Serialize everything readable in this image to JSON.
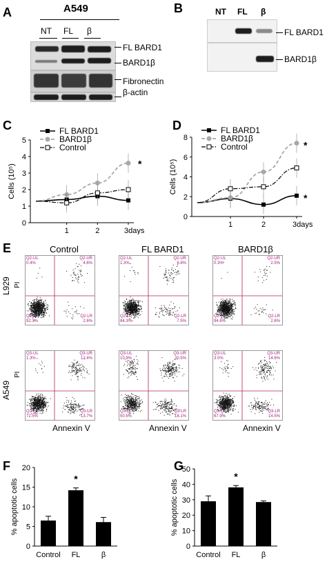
{
  "panelA": {
    "letter": "A",
    "cell_line": "A549",
    "lanes": [
      "NT",
      "FL",
      "β"
    ],
    "band_labels": [
      "FL BARD1",
      "BARD1β",
      "Fibronectin",
      "β-actin"
    ]
  },
  "panelB": {
    "letter": "B",
    "lanes": [
      "NT",
      "FL",
      "β"
    ],
    "band_labels": [
      "FL BARD1",
      "BARD1β"
    ]
  },
  "panelC": {
    "letter": "C"
  },
  "panelD": {
    "letter": "D"
  },
  "panelE": {
    "letter": "E",
    "columns": [
      "Control",
      "FL BARD1",
      "BARD1β"
    ],
    "rows": [
      "L929",
      "A549"
    ],
    "x_axis_label": "Annexin V",
    "y_axis_label": "PI",
    "plots": [
      {
        "UL": "Q2-UL",
        "UR": "Q2-UR",
        "LL": "Q2-LL",
        "LR": "Q2-LR",
        "ULv": "0.4%",
        "URv": "4.6%",
        "LLv": "92.3%",
        "LRv": "2.6%"
      },
      {
        "UL": "Q2-UL",
        "UR": "Q2-UR",
        "LL": "Q2-LL",
        "LR": "Q2-LR",
        "ULv": "1.3%",
        "URv": "6.8%",
        "LLv": "84.3%",
        "LRv": "7.5%"
      },
      {
        "UL": "Q2-UL",
        "UR": "Q2-UR",
        "LL": "Q2-LL",
        "LR": "Q2-LR",
        "ULv": "0.3%",
        "URv": "2.5%",
        "LLv": "94.6%",
        "LRv": "2.6%"
      },
      {
        "UL": "Q3-UL",
        "UR": "Q3-UR",
        "LL": "Q3-LL",
        "LR": "Q3-LR",
        "ULv": "1.3%",
        "URv": "12.4%",
        "LLv": "72.5%",
        "LRv": "13.7%"
      },
      {
        "UL": "Q3-UL",
        "UR": "Q3-UR",
        "LL": "Q3-LL",
        "LR": "Q3-LR",
        "ULv": "10.9%",
        "URv": "20.5%",
        "LLv": "50.5%",
        "LRv": "18.1%"
      },
      {
        "UL": "Q3-UL",
        "UR": "Q3-UR",
        "LL": "Q3-LL",
        "LR": "Q3-LR",
        "ULv": "3.0%",
        "URv": "14.6%",
        "LLv": "67.9%",
        "LRv": "14.5%"
      }
    ]
  },
  "panelF": {
    "letter": "F"
  },
  "panelG": {
    "letter": "G"
  },
  "chart_data": [
    {
      "id": "C",
      "type": "line",
      "x": [
        0,
        1,
        2,
        3
      ],
      "xticks": [
        "1",
        "2",
        "3days"
      ],
      "ylabel": "Cells (10⁵)",
      "ylim": [
        0,
        5
      ],
      "yticks": [
        "0",
        "1",
        "2",
        "3",
        "4",
        "5"
      ],
      "series": [
        {
          "name": "FL BARD1",
          "values": [
            1.3,
            1.4,
            1.6,
            1.35
          ],
          "color": "#000000"
        },
        {
          "name": "BARD1β",
          "values": [
            1.3,
            1.7,
            2.4,
            3.6
          ],
          "color": "#a8a8a8"
        },
        {
          "name": "Control",
          "values": [
            1.3,
            1.2,
            1.8,
            2.0
          ],
          "color": "#000000"
        }
      ],
      "annotations": [
        "*"
      ]
    },
    {
      "id": "D",
      "type": "line",
      "x": [
        0,
        1,
        2,
        3
      ],
      "xticks": [
        "1",
        "2",
        "3days"
      ],
      "ylabel": "Cells (10⁵)",
      "ylim": [
        0,
        8
      ],
      "yticks": [
        "0",
        "2",
        "4",
        "6",
        "8"
      ],
      "series": [
        {
          "name": "FL BARD1",
          "values": [
            1.4,
            1.8,
            1.2,
            2.1
          ],
          "color": "#000000"
        },
        {
          "name": "BARD1β",
          "values": [
            1.4,
            1.9,
            4.5,
            7.4
          ],
          "color": "#a8a8a8"
        },
        {
          "name": "Control",
          "values": [
            1.4,
            2.8,
            3.0,
            4.9
          ],
          "color": "#000000"
        }
      ],
      "annotations": [
        "*",
        "*"
      ]
    },
    {
      "id": "F",
      "type": "bar",
      "categories": [
        "Control",
        "FL",
        "β"
      ],
      "values": [
        6.5,
        14.2,
        6.1
      ],
      "errors": [
        1.1,
        0.6,
        1.2
      ],
      "ylabel": "% apoptotic cells",
      "ylim": [
        0,
        20
      ],
      "yticks": [
        "0",
        "5",
        "10",
        "15",
        "20"
      ],
      "annotations": [
        "*"
      ]
    },
    {
      "id": "G",
      "type": "bar",
      "categories": [
        "Control",
        "FL",
        "β"
      ],
      "values": [
        29,
        38,
        28.5
      ],
      "errors": [
        3.5,
        1.2,
        0.8
      ],
      "ylabel": "% apoptotic cells",
      "ylim": [
        0,
        50
      ],
      "yticks": [
        "0",
        "10",
        "20",
        "30",
        "40",
        "50"
      ],
      "annotations": [
        "*"
      ]
    }
  ]
}
